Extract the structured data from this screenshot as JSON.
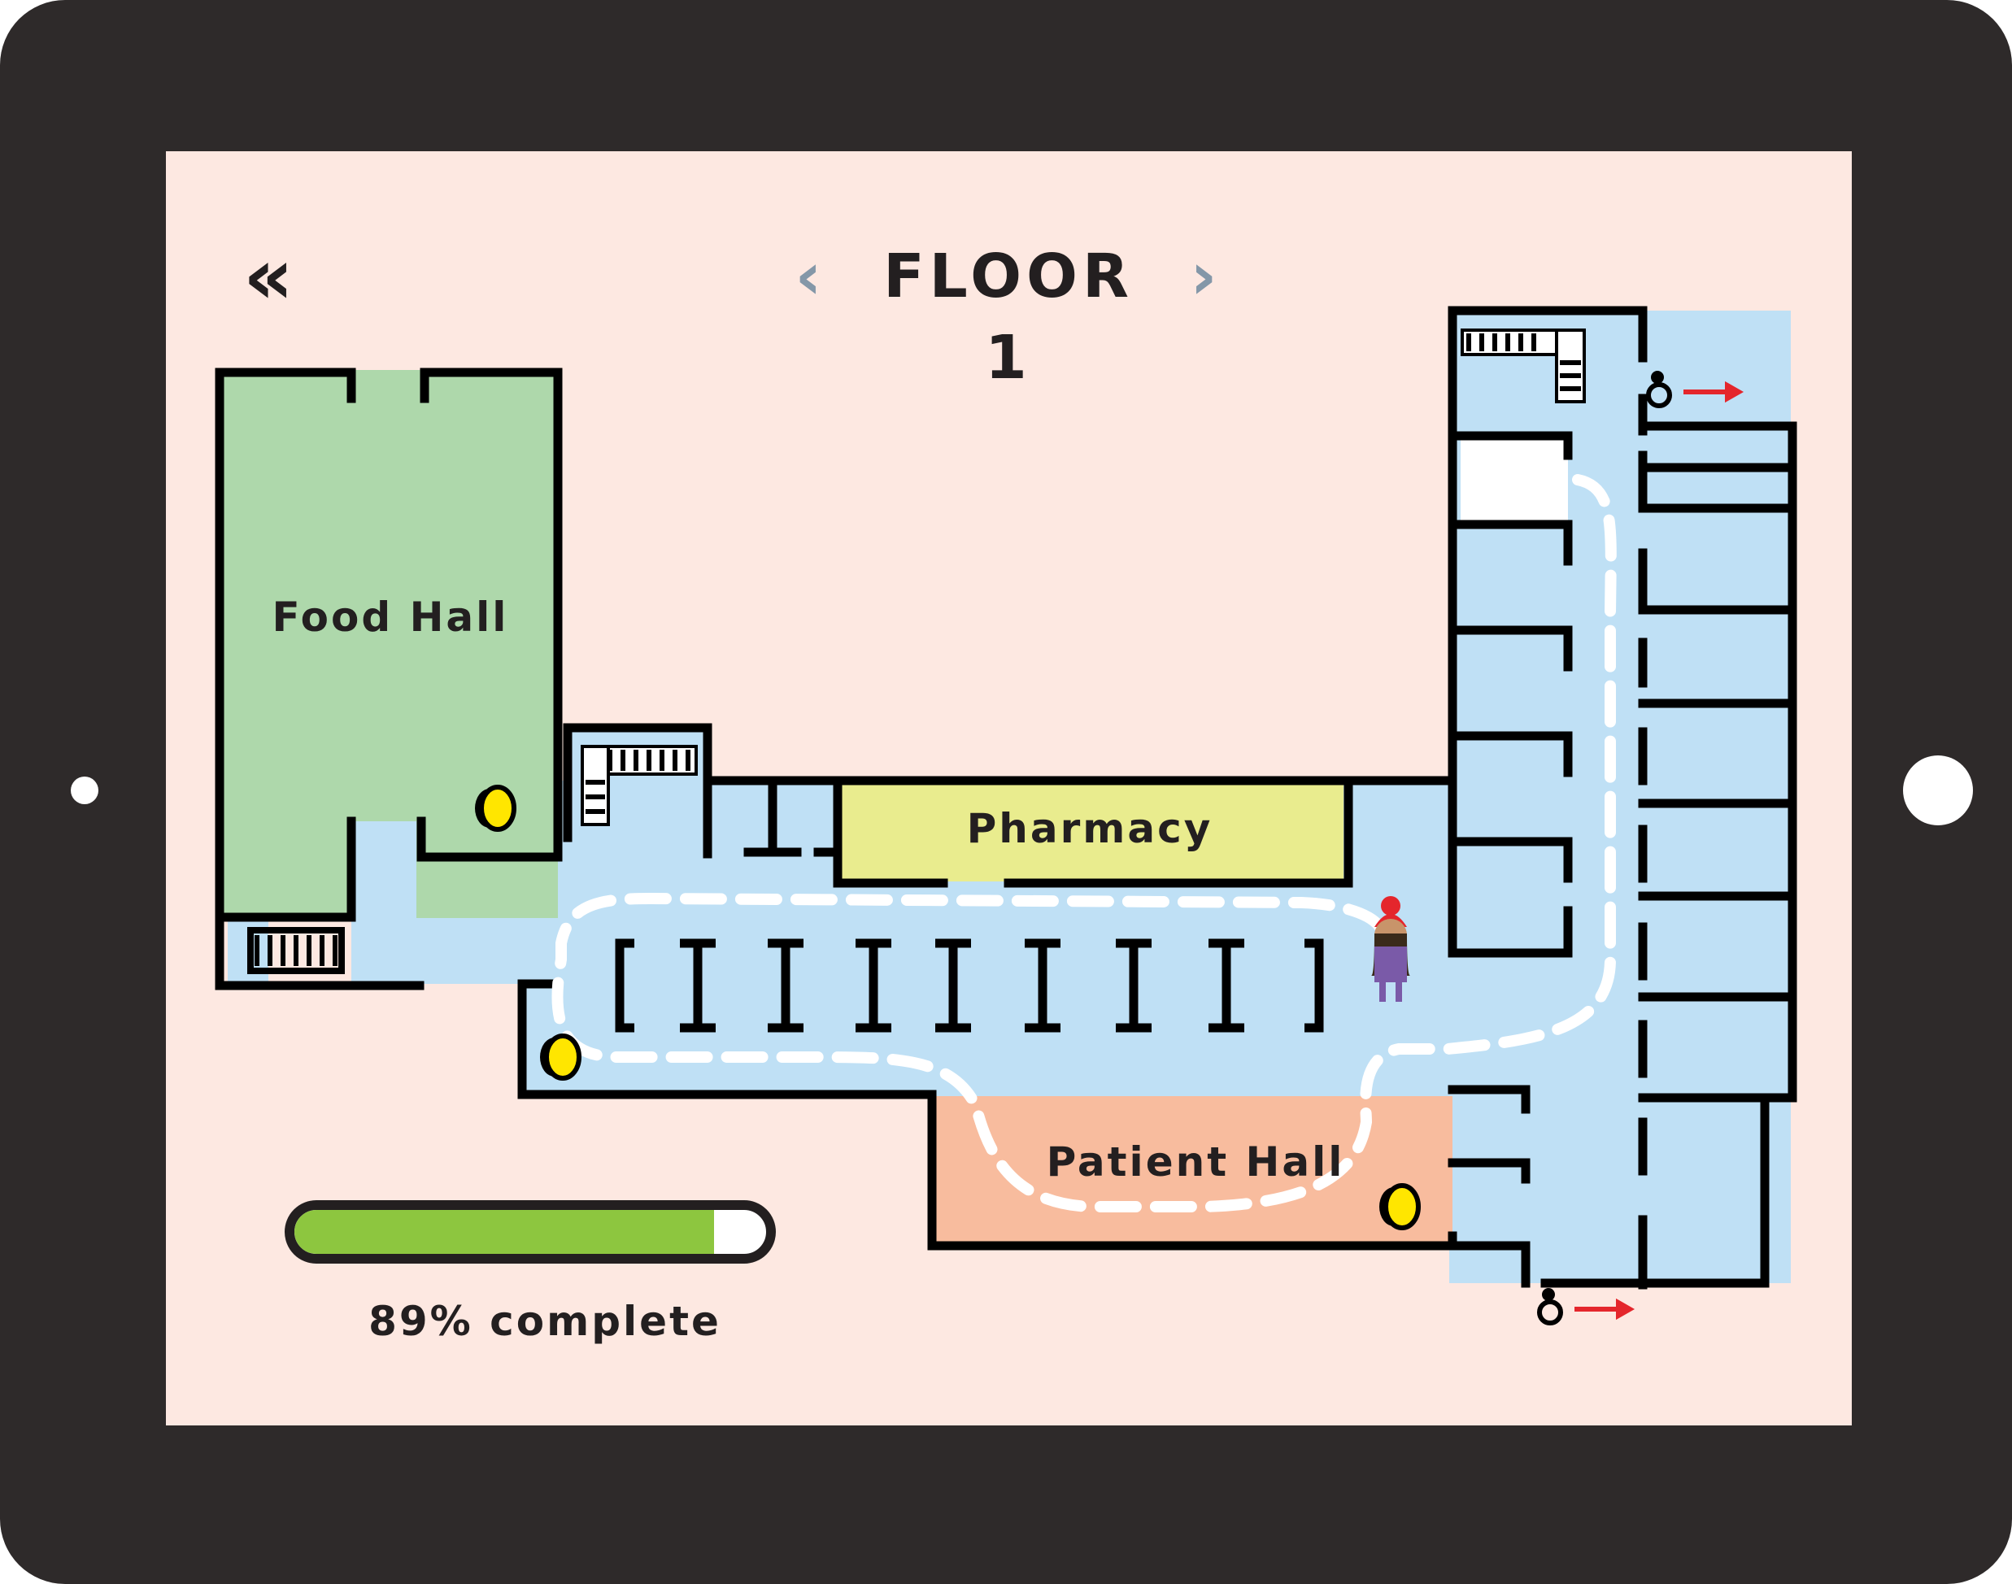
{
  "header": {
    "back_icon": "double-chevron-left-icon",
    "prev_icon": "chevron-left-icon",
    "next_icon": "chevron-right-icon",
    "prev_glyph": "‹",
    "next_glyph": "›",
    "back_glyph": "«",
    "floor_title": "FLOOR 1"
  },
  "rooms": {
    "food_hall": "Food Hall",
    "pharmacy": "Pharmacy",
    "patient_hall": "Patient Hall"
  },
  "progress": {
    "percent": 89,
    "label": "89% complete"
  },
  "markers": {
    "coin_icon": "coin-icon",
    "player_icon": "player-avatar-icon",
    "accessible_exit_icon": "wheelchair-icon",
    "exit_arrow_icon": "arrow-right-icon"
  },
  "colors": {
    "frame": "#2e2a2a",
    "screen_bg": "#fde8e1",
    "corridor": "#bfe0f5",
    "food_hall": "#aed8ab",
    "pharmacy": "#e9ec8e",
    "patient_hall": "#f8bc9e",
    "wall": "#000000",
    "progress_fill": "#8dc63f",
    "coin": "#ffe600",
    "exit_arrow": "#e4262c",
    "nav_arrow": "#8497a8"
  }
}
